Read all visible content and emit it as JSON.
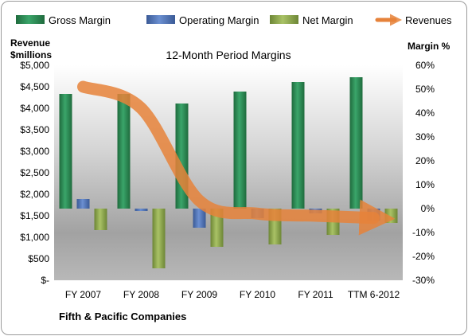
{
  "chart_data": {
    "type": "bar",
    "title": "12-Month Period Margins",
    "company": "Fifth & Pacific Companies",
    "left_axis_label": [
      "Revenue",
      "$millions"
    ],
    "right_axis_label": "Margin %",
    "left_ylim": [
      0,
      5000
    ],
    "right_ylim": [
      -30,
      60
    ],
    "left_ticks": [
      "$-",
      "$500",
      "$1,000",
      "$1,500",
      "$2,000",
      "$2,500",
      "$3,000",
      "$3,500",
      "$4,000",
      "$4,500",
      "$5,000"
    ],
    "right_ticks": [
      "-30%",
      "-20%",
      "-10%",
      "0%",
      "10%",
      "20%",
      "30%",
      "40%",
      "50%",
      "60%"
    ],
    "categories": [
      "FY 2007",
      "FY 2008",
      "FY 2009",
      "FY 2010",
      "FY 2011",
      "TTM 6-2012"
    ],
    "legend_position": "top",
    "grid": false,
    "series": [
      {
        "name": "Gross Margin",
        "axis": "right",
        "kind": "bar",
        "color": "#2e8b57",
        "values": [
          48,
          48,
          44,
          49,
          53,
          55
        ]
      },
      {
        "name": "Operating Margin",
        "axis": "right",
        "kind": "bar",
        "color": "#4f74b8",
        "values": [
          4,
          -1,
          -8,
          -4,
          -2,
          -5
        ]
      },
      {
        "name": "Net Margin",
        "axis": "right",
        "kind": "bar",
        "color": "#8faa4f",
        "values": [
          -9,
          -25,
          -16,
          -15,
          -11,
          -6
        ]
      },
      {
        "name": "Revenues",
        "axis": "left",
        "kind": "line",
        "color": "#e6823a",
        "values": [
          4500,
          4000,
          1850,
          1550,
          1500,
          1450
        ]
      }
    ]
  }
}
